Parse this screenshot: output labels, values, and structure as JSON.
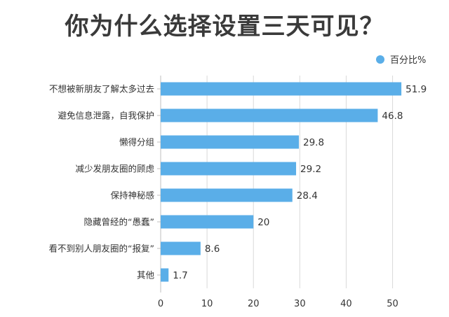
{
  "chart_data": {
    "type": "bar",
    "orientation": "horizontal",
    "title": "你为什么选择设置三天可见？",
    "categories": [
      "不想被新朋友了解太多过去",
      "避免信息泄露，自我保护",
      "懒得分组",
      "减少发朋友圈的顾虑",
      "保持神秘感",
      "隐藏曾经的“愚蠢”",
      "看不到别人朋友圈的“报复”",
      "其他"
    ],
    "series": [
      {
        "name": "百分比%",
        "values": [
          51.9,
          46.8,
          29.8,
          29.2,
          28.4,
          20,
          8.6,
          1.7
        ]
      }
    ],
    "value_labels": [
      "51.9",
      "46.8",
      "29.8",
      "29.2",
      "28.4",
      "20",
      "8.6",
      "1.7"
    ],
    "xticks": [
      "0",
      "10",
      "20",
      "30",
      "40",
      "50"
    ],
    "xlim": [
      0,
      54
    ],
    "xlabel": "",
    "ylabel": "",
    "grid": "vertical",
    "legend_position": "top-right",
    "colors": {
      "bar": "#5aaee8",
      "grid": "#d9d9d9",
      "axis": "#bfbfbf",
      "text": "#333333",
      "title": "#3a3a3a"
    }
  }
}
